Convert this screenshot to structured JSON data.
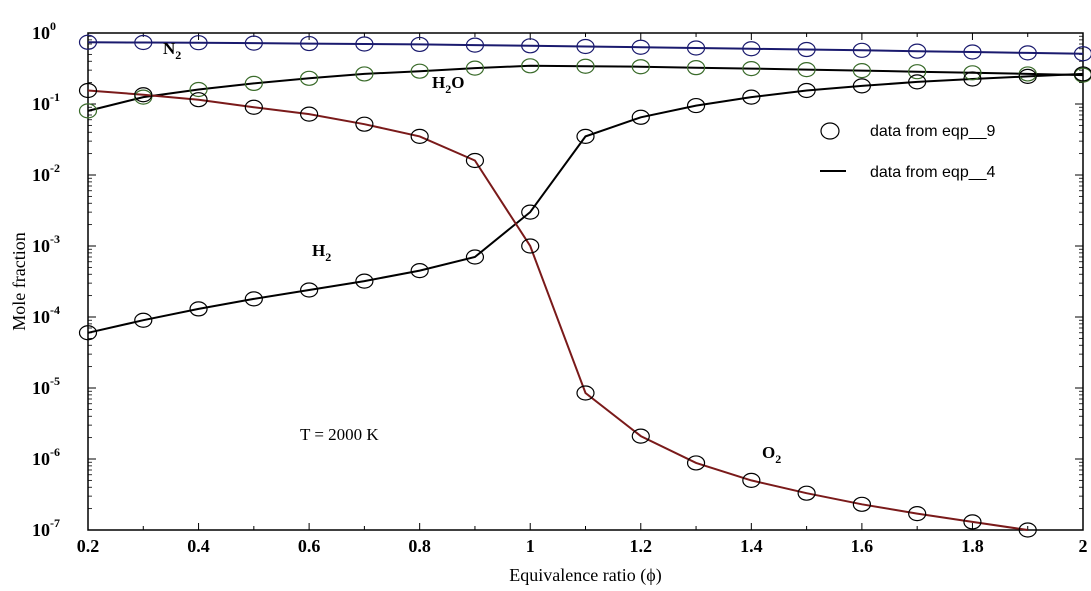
{
  "chart_data": {
    "type": "line",
    "xlabel": "Equivalence ratio (ϕ)",
    "ylabel": "Mole fraction",
    "xlim": [
      0.2,
      2.0
    ],
    "ylim": [
      1e-07,
      1
    ],
    "yscale": "log",
    "grid": false,
    "xticks": [
      "0.2",
      "0.4",
      "0.6",
      "0.8",
      "1",
      "1.2",
      "1.4",
      "1.6",
      "1.8",
      "2"
    ],
    "yticks": [
      {
        "base": "10",
        "exp": "0"
      },
      {
        "base": "10",
        "exp": "-1"
      },
      {
        "base": "10",
        "exp": "-2"
      },
      {
        "base": "10",
        "exp": "-3"
      },
      {
        "base": "10",
        "exp": "-4"
      },
      {
        "base": "10",
        "exp": "-5"
      },
      {
        "base": "10",
        "exp": "-6"
      },
      {
        "base": "10",
        "exp": "-7"
      }
    ],
    "legend": {
      "placement": "right",
      "entries": [
        "data from eqp__9",
        "data from eqp__4"
      ]
    },
    "annotation": "T = 2000 K",
    "series": [
      {
        "name": "N2",
        "label": {
          "main": "N",
          "sub": "2"
        },
        "color": "#1a1a6e",
        "markerColor": "#1a1a6e",
        "x": [
          0.2,
          0.3,
          0.4,
          0.5,
          0.6,
          0.7,
          0.8,
          0.9,
          1.0,
          1.1,
          1.2,
          1.3,
          1.4,
          1.5,
          1.6,
          1.7,
          1.8,
          1.9,
          2.0
        ],
        "values": [
          0.74,
          0.735,
          0.73,
          0.72,
          0.71,
          0.7,
          0.69,
          0.675,
          0.66,
          0.645,
          0.63,
          0.615,
          0.6,
          0.585,
          0.57,
          0.555,
          0.54,
          0.525,
          0.51
        ]
      },
      {
        "name": "H2O",
        "label": {
          "main": "H",
          "sub": "2",
          "tail": "O"
        },
        "color": "#000000",
        "markerColor": "#3a6b2a",
        "x": [
          0.2,
          0.3,
          0.4,
          0.5,
          0.6,
          0.7,
          0.8,
          0.9,
          1.0,
          1.1,
          1.2,
          1.3,
          1.4,
          1.5,
          1.6,
          1.7,
          1.8,
          1.9,
          2.0
        ],
        "values": [
          0.08,
          0.125,
          0.16,
          0.195,
          0.23,
          0.265,
          0.29,
          0.32,
          0.345,
          0.34,
          0.335,
          0.325,
          0.315,
          0.305,
          0.295,
          0.285,
          0.275,
          0.265,
          0.255
        ]
      },
      {
        "name": "H2",
        "label": {
          "main": "H",
          "sub": "2"
        },
        "color": "#000000",
        "markerColor": "#000000",
        "x": [
          0.2,
          0.3,
          0.4,
          0.5,
          0.6,
          0.7,
          0.8,
          0.9,
          1.0,
          1.1,
          1.2,
          1.3,
          1.4,
          1.5,
          1.6,
          1.7,
          1.8,
          1.9,
          2.0
        ],
        "values": [
          6e-05,
          9e-05,
          0.00013,
          0.00018,
          0.00024,
          0.00032,
          0.00045,
          0.0007,
          0.003,
          0.035,
          0.065,
          0.095,
          0.125,
          0.155,
          0.18,
          0.205,
          0.225,
          0.245,
          0.265
        ]
      },
      {
        "name": "O2",
        "label": {
          "main": "O",
          "sub": "2"
        },
        "color": "#7a1a1a",
        "markerColor": "#000000",
        "x": [
          0.2,
          0.3,
          0.4,
          0.5,
          0.6,
          0.7,
          0.8,
          0.9,
          1.0,
          1.1,
          1.2,
          1.3,
          1.4,
          1.5,
          1.6,
          1.7,
          1.8,
          1.9
        ],
        "values": [
          0.155,
          0.135,
          0.115,
          0.09,
          0.072,
          0.052,
          0.035,
          0.016,
          0.001,
          8.5e-06,
          2.1e-06,
          8.8e-07,
          5e-07,
          3.3e-07,
          2.3e-07,
          1.7e-07,
          1.3e-07,
          1e-07
        ]
      }
    ]
  }
}
